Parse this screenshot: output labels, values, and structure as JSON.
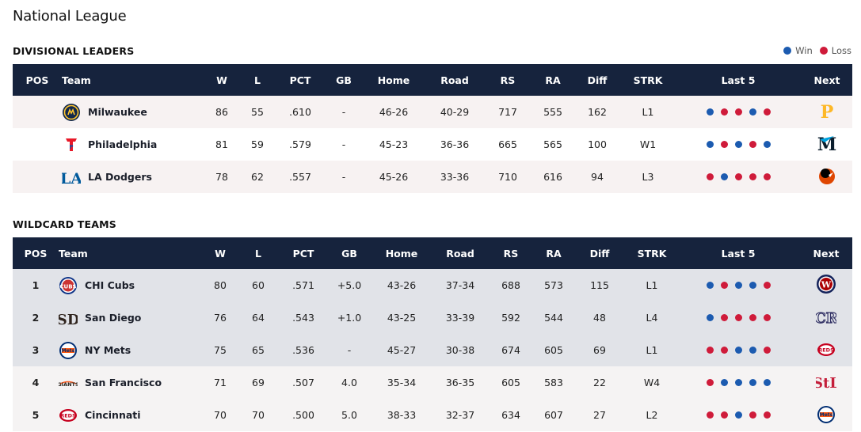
{
  "title": "National League",
  "legend": {
    "win": "Win",
    "loss": "Loss",
    "win_color": "#1c5bb0",
    "loss_color": "#cf1b3a"
  },
  "headers": [
    "POS",
    "Team",
    "W",
    "L",
    "PCT",
    "GB",
    "Home",
    "Road",
    "RS",
    "RA",
    "Diff",
    "STRK",
    "Last 5",
    "Next"
  ],
  "divisional": {
    "title": "DIVISIONAL LEADERS",
    "rows": [
      {
        "pos": "",
        "team": "Milwaukee",
        "logo": "brewers-logo-icon",
        "w": "86",
        "l": "55",
        "pct": ".610",
        "gb": "-",
        "home": "46-26",
        "road": "40-29",
        "rs": "717",
        "ra": "555",
        "diff": "162",
        "strk": "L1",
        "last5": [
          "W",
          "L",
          "L",
          "W",
          "L"
        ],
        "next": "pirates-logo-icon"
      },
      {
        "pos": "",
        "team": "Philadelphia",
        "logo": "phillies-logo-icon",
        "w": "81",
        "l": "59",
        "pct": ".579",
        "gb": "-",
        "home": "45-23",
        "road": "36-36",
        "rs": "665",
        "ra": "565",
        "diff": "100",
        "strk": "W1",
        "last5": [
          "W",
          "L",
          "W",
          "L",
          "W"
        ],
        "next": "marlins-logo-icon"
      },
      {
        "pos": "",
        "team": "LA Dodgers",
        "logo": "dodgers-logo-icon",
        "w": "78",
        "l": "62",
        "pct": ".557",
        "gb": "-",
        "home": "45-26",
        "road": "33-36",
        "rs": "710",
        "ra": "616",
        "diff": "94",
        "strk": "L3",
        "last5": [
          "L",
          "W",
          "L",
          "L",
          "L"
        ],
        "next": "orioles-logo-icon"
      }
    ]
  },
  "wildcard": {
    "title": "WILDCARD TEAMS",
    "rows": [
      {
        "pos": "1",
        "team": "CHI Cubs",
        "logo": "cubs-logo-icon",
        "w": "80",
        "l": "60",
        "pct": ".571",
        "gb": "+5.0",
        "home": "43-26",
        "road": "37-34",
        "rs": "688",
        "ra": "573",
        "diff": "115",
        "strk": "L1",
        "last5": [
          "W",
          "L",
          "W",
          "W",
          "L"
        ],
        "next": "nationals-logo-icon"
      },
      {
        "pos": "2",
        "team": "San Diego",
        "logo": "padres-logo-icon",
        "w": "76",
        "l": "64",
        "pct": ".543",
        "gb": "+1.0",
        "home": "43-25",
        "road": "33-39",
        "rs": "592",
        "ra": "544",
        "diff": "48",
        "strk": "L4",
        "last5": [
          "W",
          "L",
          "L",
          "L",
          "L"
        ],
        "next": "rockies-logo-icon"
      },
      {
        "pos": "3",
        "team": "NY Mets",
        "logo": "mets-logo-icon",
        "w": "75",
        "l": "65",
        "pct": ".536",
        "gb": "-",
        "home": "45-27",
        "road": "30-38",
        "rs": "674",
        "ra": "605",
        "diff": "69",
        "strk": "L1",
        "last5": [
          "L",
          "L",
          "W",
          "W",
          "L"
        ],
        "next": "reds-logo-icon"
      },
      {
        "pos": "4",
        "team": "San Francisco",
        "logo": "giants-logo-icon",
        "w": "71",
        "l": "69",
        "pct": ".507",
        "gb": "4.0",
        "home": "35-34",
        "road": "36-35",
        "rs": "605",
        "ra": "583",
        "diff": "22",
        "strk": "W4",
        "last5": [
          "L",
          "W",
          "W",
          "W",
          "W"
        ],
        "next": "cardinals-logo-icon"
      },
      {
        "pos": "5",
        "team": "Cincinnati",
        "logo": "reds-logo-icon",
        "w": "70",
        "l": "70",
        "pct": ".500",
        "gb": "5.0",
        "home": "38-33",
        "road": "32-37",
        "rs": "634",
        "ra": "607",
        "diff": "27",
        "strk": "L2",
        "last5": [
          "L",
          "L",
          "W",
          "L",
          "L"
        ],
        "next": "mets-logo-icon"
      }
    ]
  }
}
